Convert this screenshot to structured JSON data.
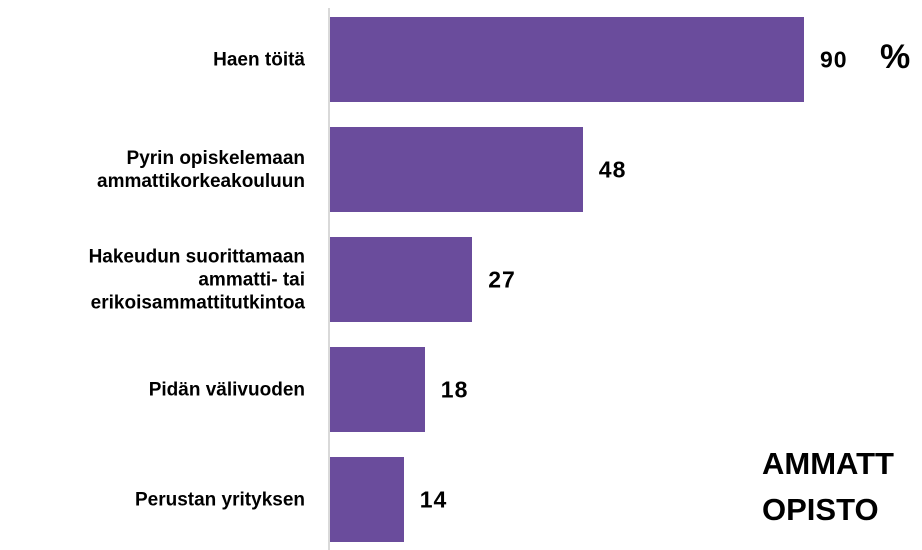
{
  "chart_data": {
    "type": "bar",
    "orientation": "horizontal",
    "categories": [
      "Haen töitä",
      "Pyrin opiskelemaan\nammattikorkeakouluun",
      "Hakeudun suorittamaan\nammatti- tai\nerikoisammattitutkintoa",
      "Pidän välivuoden",
      "Perustan yrityksen"
    ],
    "values": [
      90,
      48,
      27,
      18,
      14
    ],
    "color": "#6a4c9c",
    "xlim": [
      0,
      90
    ],
    "unit_annotation": "%",
    "annotations": [
      "AMMATT",
      "OPISTO"
    ]
  }
}
